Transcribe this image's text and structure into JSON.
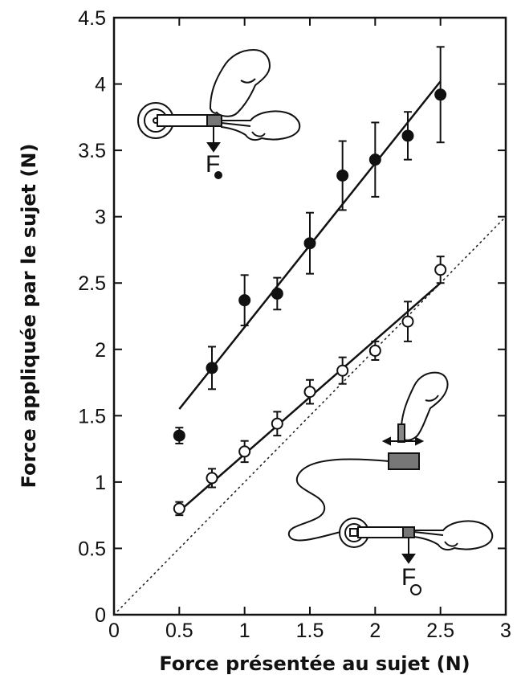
{
  "chart_data": {
    "type": "scatter",
    "xlabel": "Force présentée au sujet (N)",
    "ylabel": "Force appliquée par le sujet (N)",
    "xlim": [
      0,
      3
    ],
    "ylim": [
      0,
      4.5
    ],
    "xticks": [
      0,
      0.5,
      1,
      1.5,
      2,
      2.5,
      3
    ],
    "xtick_labels": [
      "0",
      "0.5",
      "1",
      "1.5",
      "2",
      "2.5",
      "3"
    ],
    "yticks": [
      0,
      0.5,
      1,
      1.5,
      2,
      2.5,
      3,
      3.5,
      4,
      4.5
    ],
    "ytick_labels": [
      "0",
      "0.5",
      "1",
      "1.5",
      "2",
      "2.5",
      "3",
      "3.5",
      "4",
      "4.5"
    ],
    "grid": false,
    "series": [
      {
        "marker": "filled-circle",
        "x": [
          0.5,
          0.75,
          1.0,
          1.25,
          1.5,
          1.75,
          2.0,
          2.25,
          2.5
        ],
        "y": [
          1.35,
          1.86,
          2.37,
          2.42,
          2.8,
          3.31,
          3.43,
          3.61,
          3.92
        ],
        "err": [
          0.06,
          0.16,
          0.19,
          0.12,
          0.23,
          0.26,
          0.28,
          0.18,
          0.36
        ],
        "fit": {
          "x": [
            0.5,
            2.5
          ],
          "y": [
            1.55,
            4.02
          ]
        }
      },
      {
        "marker": "open-circle",
        "x": [
          0.5,
          0.75,
          1.0,
          1.25,
          1.5,
          1.75,
          2.0,
          2.25,
          2.5
        ],
        "y": [
          0.8,
          1.03,
          1.23,
          1.44,
          1.68,
          1.84,
          1.99,
          2.21,
          2.6
        ],
        "err": [
          0.05,
          0.07,
          0.08,
          0.09,
          0.09,
          0.1,
          0.07,
          0.15,
          0.1
        ],
        "fit": {
          "x": [
            0.5,
            2.5
          ],
          "y": [
            0.78,
            2.5
          ]
        }
      }
    ],
    "reference_line": {
      "x": [
        0,
        3
      ],
      "y": [
        0,
        3
      ],
      "style": "dotted"
    },
    "annotations": [
      {
        "text": "F",
        "marker": "filled-circle",
        "near": "upper-left inset"
      },
      {
        "text": "F",
        "marker": "open-circle",
        "near": "lower-right inset"
      }
    ]
  }
}
